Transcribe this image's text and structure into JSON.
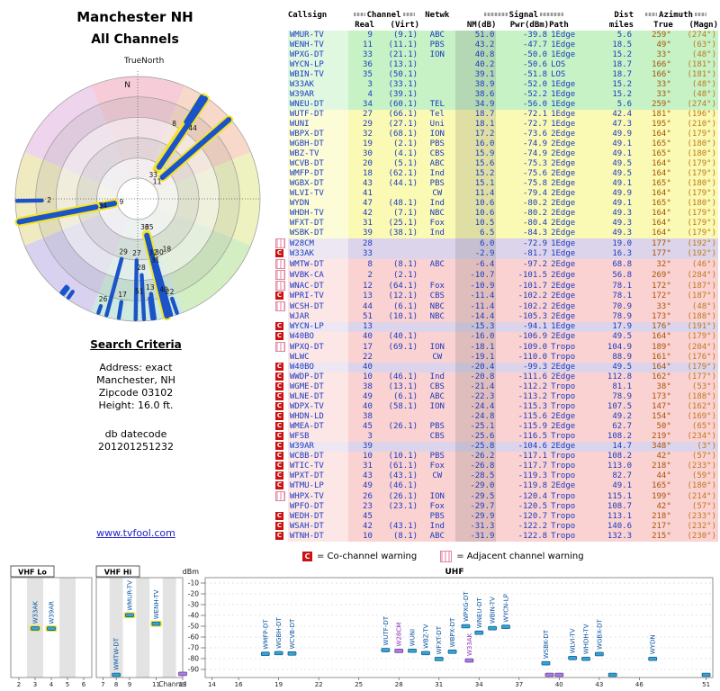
{
  "header": {
    "title1": "Manchester NH",
    "title2": "All Channels"
  },
  "criteria": {
    "heading": "Search Criteria",
    "lines": [
      "Address: exact",
      "Manchester, NH",
      "Zipcode 03102",
      "Height: 16.0 ft."
    ],
    "datecode_label": "db datecode",
    "datecode": "201201251232"
  },
  "link": "www.tvfool.com",
  "legend": {
    "co_symbol": "C",
    "co_text": "= Co-channel warning",
    "adj_text": "= Adjacent channel warning"
  },
  "table": {
    "group_headers": {
      "callsign": "Callsign",
      "channel": "Channel",
      "netwk": "Netwk",
      "signal": "Signal",
      "dist": "Dist",
      "azimuth": "Azimuth"
    },
    "sub_headers": {
      "real": "Real",
      "virt": "(Virt)",
      "nm": "NM(dB)",
      "pwr": "Pwr(dBm)",
      "path": "Path",
      "miles": "miles",
      "true": "True",
      "magn": "(Magn)"
    },
    "row_colors": {
      "g": "#c6f2c6",
      "y": "#fafab4",
      "a": "#dcd4ea",
      "p": "#fbd2d2"
    },
    "text_color": "#1a3bbf",
    "az_true_color": "#a85400",
    "az_magn_color": "#c07818",
    "co_color": "#cc1111",
    "rows": [
      [
        "",
        "WMUR-TV",
        "9",
        "(9.1)",
        "ABC",
        "51.0",
        "-39.8",
        "1Edge",
        "5.6",
        "259°",
        "(274°)",
        "g"
      ],
      [
        "",
        "WENH-TV",
        "11",
        "(11.1)",
        "PBS",
        "43.2",
        "-47.7",
        "1Edge",
        "18.5",
        "49°",
        "(63°)",
        "g"
      ],
      [
        "",
        "WPXG-DT",
        "33",
        "(21.1)",
        "ION",
        "40.8",
        "-50.0",
        "1Edge",
        "15.2",
        "33°",
        "(48°)",
        "g"
      ],
      [
        "",
        "WYCN-LP",
        "36",
        "(13.1)",
        "",
        "40.2",
        "-50.6",
        "LOS",
        "18.7",
        "166°",
        "(181°)",
        "g"
      ],
      [
        "",
        "WBIN-TV",
        "35",
        "(50.1)",
        "",
        "39.1",
        "-51.8",
        "LOS",
        "18.7",
        "166°",
        "(181°)",
        "g"
      ],
      [
        "",
        "W33AK",
        "3",
        "(33.1)",
        "",
        "38.9",
        "-52.0",
        "1Edge",
        "15.2",
        "33°",
        "(48°)",
        "g"
      ],
      [
        "",
        "W39AR",
        "4",
        "(39.1)",
        "",
        "38.6",
        "-52.2",
        "1Edge",
        "15.2",
        "33°",
        "(48°)",
        "g"
      ],
      [
        "",
        "WNEU-DT",
        "34",
        "(60.1)",
        "TEL",
        "34.9",
        "-56.0",
        "1Edge",
        "5.6",
        "259°",
        "(274°)",
        "g"
      ],
      [
        "",
        "WUTF-DT",
        "27",
        "(66.1)",
        "Tel",
        "18.7",
        "-72.1",
        "1Edge",
        "42.4",
        "181°",
        "(196°)",
        "y"
      ],
      [
        "",
        "WUNI",
        "29",
        "(27.1)",
        "Uni",
        "18.1",
        "-72.7",
        "1Edge",
        "47.3",
        "195°",
        "(210°)",
        "y"
      ],
      [
        "",
        "WBPX-DT",
        "32",
        "(68.1)",
        "ION",
        "17.2",
        "-73.6",
        "2Edge",
        "49.9",
        "164°",
        "(179°)",
        "y"
      ],
      [
        "",
        "WGBH-DT",
        "19",
        "(2.1)",
        "PBS",
        "16.0",
        "-74.9",
        "2Edge",
        "49.1",
        "165°",
        "(180°)",
        "y"
      ],
      [
        "",
        "WBZ-TV",
        "30",
        "(4.1)",
        "CBS",
        "15.9",
        "-74.9",
        "2Edge",
        "49.1",
        "165°",
        "(180°)",
        "y"
      ],
      [
        "",
        "WCVB-DT",
        "20",
        "(5.1)",
        "ABC",
        "15.6",
        "-75.3",
        "2Edge",
        "49.5",
        "164°",
        "(179°)",
        "y"
      ],
      [
        "",
        "WMFP-DT",
        "18",
        "(62.1)",
        "Ind",
        "15.2",
        "-75.6",
        "2Edge",
        "49.5",
        "164°",
        "(179°)",
        "y"
      ],
      [
        "",
        "WGBX-DT",
        "43",
        "(44.1)",
        "PBS",
        "15.1",
        "-75.8",
        "2Edge",
        "49.1",
        "165°",
        "(180°)",
        "y"
      ],
      [
        "",
        "WLVI-TV",
        "41",
        "",
        "CW",
        "11.4",
        "-79.4",
        "2Edge",
        "49.9",
        "164°",
        "(179°)",
        "y"
      ],
      [
        "",
        "WYDN",
        "47",
        "(48.1)",
        "Ind",
        "10.6",
        "-80.2",
        "2Edge",
        "49.1",
        "165°",
        "(180°)",
        "y"
      ],
      [
        "",
        "WHDH-TV",
        "42",
        "(7.1)",
        "NBC",
        "10.6",
        "-80.2",
        "2Edge",
        "49.3",
        "164°",
        "(179°)",
        "y"
      ],
      [
        "",
        "WFXT-DT",
        "31",
        "(25.1)",
        "Fox",
        "10.5",
        "-80.4",
        "2Edge",
        "49.3",
        "164°",
        "(179°)",
        "y"
      ],
      [
        "",
        "WSBK-DT",
        "39",
        "(38.1)",
        "Ind",
        "6.5",
        "-84.3",
        "2Edge",
        "49.3",
        "164°",
        "(179°)",
        "y"
      ],
      [
        "A",
        "W28CM",
        "28",
        "",
        "",
        "6.0",
        "-72.9",
        "1Edge",
        "19.0",
        "177°",
        "(192°)",
        "a"
      ],
      [
        "C",
        "W33AK",
        "33",
        "",
        "",
        "-2.9",
        "-81.7",
        "1Edge",
        "16.3",
        "177°",
        "(192°)",
        "a"
      ],
      [
        "A",
        "WMTW-DT",
        "8",
        "(8.1)",
        "ABC",
        "-6.4",
        "-97.2",
        "2Edge",
        "68.8",
        "32°",
        "(46°)",
        "p"
      ],
      [
        "A",
        "WVBK-CA",
        "2",
        "(2.1)",
        "",
        "-10.7",
        "-101.5",
        "2Edge",
        "56.8",
        "269°",
        "(284°)",
        "p"
      ],
      [
        "A",
        "WNAC-DT",
        "12",
        "(64.1)",
        "Fox",
        "-10.9",
        "-101.7",
        "2Edge",
        "78.1",
        "172°",
        "(187°)",
        "p"
      ],
      [
        "C",
        "WPRI-TV",
        "13",
        "(12.1)",
        "CBS",
        "-11.4",
        "-102.2",
        "2Edge",
        "78.1",
        "172°",
        "(187°)",
        "p"
      ],
      [
        "A",
        "WCSH-DT",
        "44",
        "(6.1)",
        "NBC",
        "-11.4",
        "-102.2",
        "2Edge",
        "70.9",
        "33°",
        "(48°)",
        "p"
      ],
      [
        "",
        "WJAR",
        "51",
        "(10.1)",
        "NBC",
        "-14.4",
        "-105.3",
        "2Edge",
        "78.9",
        "173°",
        "(188°)",
        "p"
      ],
      [
        "C",
        "WYCN-LP",
        "13",
        "",
        "",
        "-15.3",
        "-94.1",
        "1Edge",
        "17.9",
        "176°",
        "(191°)",
        "a"
      ],
      [
        "C",
        "W40BO",
        "40",
        "(40.1)",
        "",
        "-16.0",
        "-106.9",
        "2Edge",
        "49.5",
        "164°",
        "(179°)",
        "p"
      ],
      [
        "A",
        "WPXQ-DT",
        "17",
        "(69.1)",
        "ION",
        "-18.1",
        "-109.0",
        "Tropo",
        "104.9",
        "189°",
        "(204°)",
        "p"
      ],
      [
        "",
        "WLWC",
        "22",
        "",
        "CW",
        "-19.1",
        "-110.0",
        "Tropo",
        "88.9",
        "161°",
        "(176°)",
        "p"
      ],
      [
        "C",
        "W40BO",
        "40",
        "",
        "",
        "-20.4",
        "-99.3",
        "2Edge",
        "49.5",
        "164°",
        "(179°)",
        "a"
      ],
      [
        "C",
        "WWDP-DT",
        "10",
        "(46.1)",
        "Ind",
        "-20.8",
        "-111.6",
        "2Edge",
        "112.8",
        "162°",
        "(177°)",
        "p"
      ],
      [
        "C",
        "WGME-DT",
        "38",
        "(13.1)",
        "CBS",
        "-21.4",
        "-112.2",
        "Tropo",
        "81.1",
        "38°",
        "(53°)",
        "p"
      ],
      [
        "C",
        "WLNE-DT",
        "49",
        "(6.1)",
        "ABC",
        "-22.3",
        "-113.2",
        "Tropo",
        "78.9",
        "173°",
        "(188°)",
        "p"
      ],
      [
        "C",
        "WDPX-TV",
        "40",
        "(58.1)",
        "ION",
        "-24.4",
        "-115.3",
        "Tropo",
        "107.5",
        "147°",
        "(162°)",
        "p"
      ],
      [
        "C",
        "WHDN-LD",
        "38",
        "",
        "",
        "-24.8",
        "-115.6",
        "2Edge",
        "49.2",
        "154°",
        "(169°)",
        "p"
      ],
      [
        "C",
        "WMEA-DT",
        "45",
        "(26.1)",
        "PBS",
        "-25.1",
        "-115.9",
        "2Edge",
        "62.7",
        "50°",
        "(65°)",
        "p"
      ],
      [
        "C",
        "WFSB",
        "3",
        "",
        "CBS",
        "-25.6",
        "-116.5",
        "Tropo",
        "108.2",
        "219°",
        "(234°)",
        "p"
      ],
      [
        "C",
        "W39AR",
        "39",
        "",
        "",
        "-25.8",
        "-104.6",
        "2Edge",
        "14.7",
        "348°",
        "(3°)",
        "a"
      ],
      [
        "C",
        "WCBB-DT",
        "10",
        "(10.1)",
        "PBS",
        "-26.2",
        "-117.1",
        "Tropo",
        "108.2",
        "42°",
        "(57°)",
        "p"
      ],
      [
        "C",
        "WTIC-TV",
        "31",
        "(61.1)",
        "Fox",
        "-26.8",
        "-117.7",
        "Tropo",
        "113.0",
        "218°",
        "(233°)",
        "p"
      ],
      [
        "C",
        "WPXT-DT",
        "43",
        "(43.1)",
        "CW",
        "-28.5",
        "-119.3",
        "Tropo",
        "82.7",
        "44°",
        "(59°)",
        "p"
      ],
      [
        "C",
        "WTMU-LP",
        "49",
        "(46.1)",
        "",
        "-29.0",
        "-119.8",
        "2Edge",
        "49.1",
        "165°",
        "(180°)",
        "p"
      ],
      [
        "A",
        "WHPX-TV",
        "26",
        "(26.1)",
        "ION",
        "-29.5",
        "-120.4",
        "Tropo",
        "115.1",
        "199°",
        "(214°)",
        "p"
      ],
      [
        "",
        "WPFO-DT",
        "23",
        "(23.1)",
        "Fox",
        "-29.7",
        "-120.5",
        "Tropo",
        "108.7",
        "42°",
        "(57°)",
        "p"
      ],
      [
        "C",
        "WEDH-DT",
        "45",
        "",
        "PBS",
        "-29.9",
        "-120.7",
        "Tropo",
        "113.1",
        "218°",
        "(233°)",
        "p"
      ],
      [
        "C",
        "WSAH-DT",
        "42",
        "(43.1)",
        "Ind",
        "-31.3",
        "-122.2",
        "Tropo",
        "140.6",
        "217°",
        "(232°)",
        "p"
      ],
      [
        "C",
        "WTNH-DT",
        "10",
        "(8.1)",
        "ABC",
        "-31.9",
        "-122.8",
        "Tropo",
        "132.3",
        "215°",
        "(230°)",
        "p"
      ]
    ]
  },
  "radar": {
    "truenorth": "TrueNorth",
    "north": "N",
    "sector_colors": [
      "#f5ccd8",
      "#f8d8c8",
      "#eef2c0",
      "#d4eec4",
      "#cdeade",
      "#d8d2f0",
      "#f0eac0",
      "#eed4ec"
    ],
    "bar_color": "#1b54c8",
    "strong_halo": "#f4e32a",
    "stations": [
      {
        "ch": "9",
        "az": 259,
        "nm": 51.0,
        "strong": true
      },
      {
        "ch": "34",
        "az": 259,
        "nm": 34.9,
        "strong": true
      },
      {
        "ch": "2",
        "az": 269,
        "nm": -10.7
      },
      {
        "ch": "11",
        "az": 49,
        "nm": 43.2,
        "strong": true
      },
      {
        "ch": "33",
        "az": 33,
        "nm": 40.8,
        "strong": true
      },
      {
        "ch": "3",
        "az": 33,
        "nm": 38.9,
        "strong": true,
        "nolabel": true
      },
      {
        "ch": "4",
        "az": 34,
        "nm": 38.6,
        "strong": true,
        "nolabel": true
      },
      {
        "ch": "8",
        "az": 32,
        "nm": -6.4,
        "laz": -6
      },
      {
        "ch": "44",
        "az": 33,
        "nm": -11.4,
        "laz": 5
      },
      {
        "ch": "36",
        "az": 166,
        "nm": 40.2,
        "strong": true
      },
      {
        "ch": "35",
        "az": 166,
        "nm": 39.1,
        "strong": true,
        "laz": -8
      },
      {
        "ch": "27",
        "az": 181,
        "nm": 18.7
      },
      {
        "ch": "29",
        "az": 195,
        "nm": 18.1
      },
      {
        "ch": "32",
        "az": 164,
        "nm": 17.2
      },
      {
        "ch": "30",
        "az": 165,
        "nm": 15.9,
        "laz": -7
      },
      {
        "ch": "18",
        "az": 164,
        "nm": 15.2,
        "laz": -14
      },
      {
        "ch": "31",
        "az": 164,
        "nm": 10.5
      },
      {
        "ch": "28",
        "az": 177,
        "nm": 6.0
      },
      {
        "ch": "13",
        "az": 172,
        "nm": -11.4
      },
      {
        "ch": "51",
        "az": 173,
        "nm": -14.4,
        "laz": 6
      },
      {
        "ch": "40",
        "az": 164,
        "nm": -16.0
      },
      {
        "ch": "17",
        "az": 189,
        "nm": -18.1
      },
      {
        "ch": "22",
        "az": 161,
        "nm": -19.1
      },
      {
        "ch": "26",
        "az": 199,
        "nm": -29.5
      },
      {
        "ch": "10",
        "az": 215,
        "nm": -31.9,
        "nolabel": true
      },
      {
        "ch": "45",
        "az": 218,
        "nm": -29.9,
        "nolabel": true
      },
      {
        "ch": "3",
        "az": 219,
        "nm": -25.6,
        "nolabel": true
      },
      {
        "ch": "12",
        "az": 172,
        "nm": -10.9,
        "nolabel": true
      }
    ]
  },
  "spectrum": {
    "dbm_label": "dBm",
    "channel_label": "Channel",
    "uhf_label": "UHF",
    "vhf_lo_label": "VHF Lo",
    "vhf_hi_label": "VHF Hi",
    "dbm_ticks": [
      -10,
      -20,
      -30,
      -40,
      -50,
      -60,
      -70,
      -80,
      -90
    ],
    "vhf_lo_ticks": [
      2,
      3,
      4,
      5,
      6
    ],
    "vhf_hi_ticks": [
      7,
      8,
      9,
      11,
      13
    ],
    "uhf_ticks": [
      14,
      16,
      19,
      22,
      25,
      28,
      31,
      34,
      37,
      40,
      43,
      46,
      51
    ],
    "colors": {
      "digital": "#35a4d4",
      "digital_stroke": "#135c8c",
      "analog": "#a87fe0",
      "analog_stroke": "#6a3fa0",
      "strong_halo": "#f2e43c",
      "label_digital": "#0a55a0",
      "label_analog": "#8833bb"
    },
    "markers": [
      {
        "band": "lo",
        "call": "W33AK",
        "ch": 3,
        "dbm": -52.0,
        "strong": true,
        "label": true
      },
      {
        "band": "lo",
        "call": "W39AR",
        "ch": 4,
        "dbm": -52.2,
        "strong": true,
        "label": true
      },
      {
        "band": "hi",
        "call": "WMTW-DT",
        "ch": 8,
        "dbm": -97.2,
        "label": true
      },
      {
        "band": "hi",
        "call": "WMUR-TV",
        "ch": 9,
        "dbm": -39.8,
        "strong": true,
        "label": true
      },
      {
        "band": "hi",
        "call": "WENH-TV",
        "ch": 11,
        "dbm": -47.7,
        "strong": true,
        "label": true
      },
      {
        "band": "hi",
        "call": "WYCN-LP",
        "ch": 13,
        "dbm": -94.1,
        "analog": true,
        "label": false
      },
      {
        "band": "uhf",
        "call": "WMFP-DT",
        "ch": 18,
        "dbm": -75.6,
        "label": true
      },
      {
        "band": "uhf",
        "call": "WGBH-DT",
        "ch": 19,
        "dbm": -74.9,
        "label": true
      },
      {
        "band": "uhf",
        "call": "WCVB-DT",
        "ch": 20,
        "dbm": -75.3,
        "label": true
      },
      {
        "band": "uhf",
        "call": "WUTF-DT",
        "ch": 27,
        "dbm": -72.1,
        "label": true
      },
      {
        "band": "uhf",
        "call": "W28CM",
        "ch": 28,
        "dbm": -72.9,
        "analog": true,
        "label": true
      },
      {
        "band": "uhf",
        "call": "WUNI",
        "ch": 29,
        "dbm": -72.7,
        "label": true
      },
      {
        "band": "uhf",
        "call": "WBZ-TV",
        "ch": 30,
        "dbm": -74.9,
        "label": true
      },
      {
        "band": "uhf",
        "call": "WFXT-DT",
        "ch": 31,
        "dbm": -80.4,
        "label": true
      },
      {
        "band": "uhf",
        "call": "WBPX-DT",
        "ch": 32,
        "dbm": -73.6,
        "label": true
      },
      {
        "band": "uhf",
        "call": "WPXG-DT",
        "ch": 33,
        "dbm": -50.0,
        "label": true
      },
      {
        "band": "uhf",
        "call": "W33AK",
        "ch": 33,
        "dbm": -81.7,
        "analog": true,
        "label": true,
        "xo": 4
      },
      {
        "band": "uhf",
        "call": "WNEU-DT",
        "ch": 34,
        "dbm": -56.0,
        "label": true
      },
      {
        "band": "uhf",
        "call": "WBIN-TV",
        "ch": 35,
        "dbm": -51.8,
        "label": true
      },
      {
        "band": "uhf",
        "call": "WYCN-LP",
        "ch": 36,
        "dbm": -50.6,
        "label": true
      },
      {
        "band": "uhf",
        "call": "WSBK-DT",
        "ch": 39,
        "dbm": -84.3,
        "label": true
      },
      {
        "band": "uhf",
        "call": "W39AR",
        "ch": 39,
        "dbm": -104.6,
        "analog": true,
        "label": false,
        "xo": 4
      },
      {
        "band": "uhf",
        "call": "W40BO",
        "ch": 40,
        "dbm": -99.3,
        "analog": true,
        "label": false
      },
      {
        "band": "uhf",
        "call": "WLVI-TV",
        "ch": 41,
        "dbm": -79.4,
        "label": true
      },
      {
        "band": "uhf",
        "call": "WHDH-TV",
        "ch": 42,
        "dbm": -80.2,
        "label": true
      },
      {
        "band": "uhf",
        "call": "WGBX-DT",
        "ch": 43,
        "dbm": -75.8,
        "label": true
      },
      {
        "band": "uhf",
        "call": "WCSH-DT",
        "ch": 44,
        "dbm": -102.2,
        "label": false
      },
      {
        "band": "uhf",
        "call": "WYDN",
        "ch": 47,
        "dbm": -80.2,
        "label": true
      },
      {
        "band": "uhf",
        "call": "WJAR",
        "ch": 51,
        "dbm": -105.3,
        "label": false
      }
    ]
  }
}
